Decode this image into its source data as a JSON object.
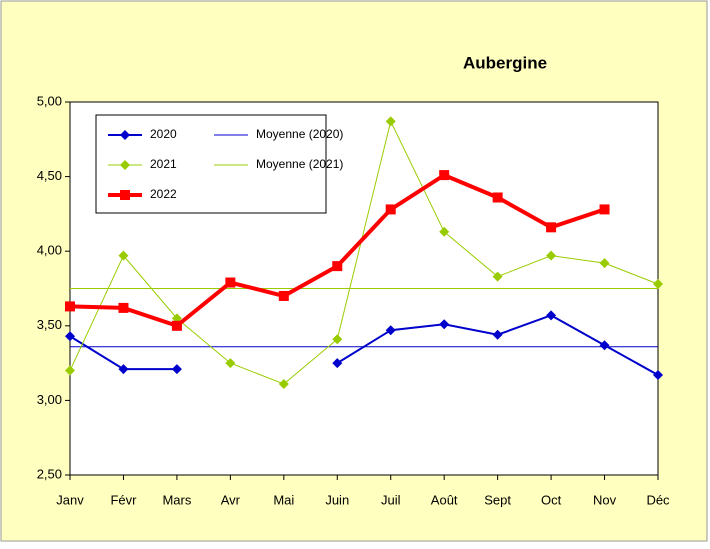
{
  "chart_data": {
    "type": "line",
    "title": "Aubergine",
    "categories": [
      "Janv",
      "Févr",
      "Mars",
      "Avr",
      "Mai",
      "Juin",
      "Juil",
      "Août",
      "Sept",
      "Oct",
      "Nov",
      "Déc"
    ],
    "series": [
      {
        "name": "2020",
        "color": "#0000cc",
        "width": 2,
        "marker": "diamond",
        "values": [
          3.43,
          3.21,
          3.21,
          null,
          null,
          3.25,
          3.47,
          3.51,
          3.44,
          3.57,
          3.37,
          3.17
        ]
      },
      {
        "name": "Moyenne (2020)",
        "color": "#0000cc",
        "width": 1,
        "marker": "none",
        "values": [
          3.36,
          3.36,
          3.36,
          3.36,
          3.36,
          3.36,
          3.36,
          3.36,
          3.36,
          3.36,
          3.36,
          3.36
        ]
      },
      {
        "name": "2021",
        "color": "#99cc00",
        "width": 1,
        "marker": "diamond",
        "values": [
          3.2,
          3.97,
          3.55,
          3.25,
          3.11,
          3.41,
          4.87,
          4.13,
          3.83,
          3.97,
          3.92,
          3.78
        ]
      },
      {
        "name": "Moyenne (2021)",
        "color": "#99cc00",
        "width": 1,
        "marker": "none",
        "values": [
          3.75,
          3.75,
          3.75,
          3.75,
          3.75,
          3.75,
          3.75,
          3.75,
          3.75,
          3.75,
          3.75,
          3.75
        ]
      },
      {
        "name": "2022",
        "color": "#ff0000",
        "width": 4,
        "marker": "square",
        "values": [
          3.63,
          3.62,
          3.5,
          3.79,
          3.7,
          3.9,
          4.28,
          4.51,
          4.36,
          4.16,
          4.28,
          null
        ]
      }
    ],
    "ylim": [
      2.5,
      5
    ],
    "yticks": [
      {
        "value": 2.5,
        "label": "2,50"
      },
      {
        "value": 3,
        "label": "3,00"
      },
      {
        "value": 3.5,
        "label": "3,50"
      },
      {
        "value": 4,
        "label": "4,00"
      },
      {
        "value": 4.5,
        "label": "4,50"
      },
      {
        "value": 5,
        "label": "5,00"
      }
    ],
    "grid": false
  }
}
